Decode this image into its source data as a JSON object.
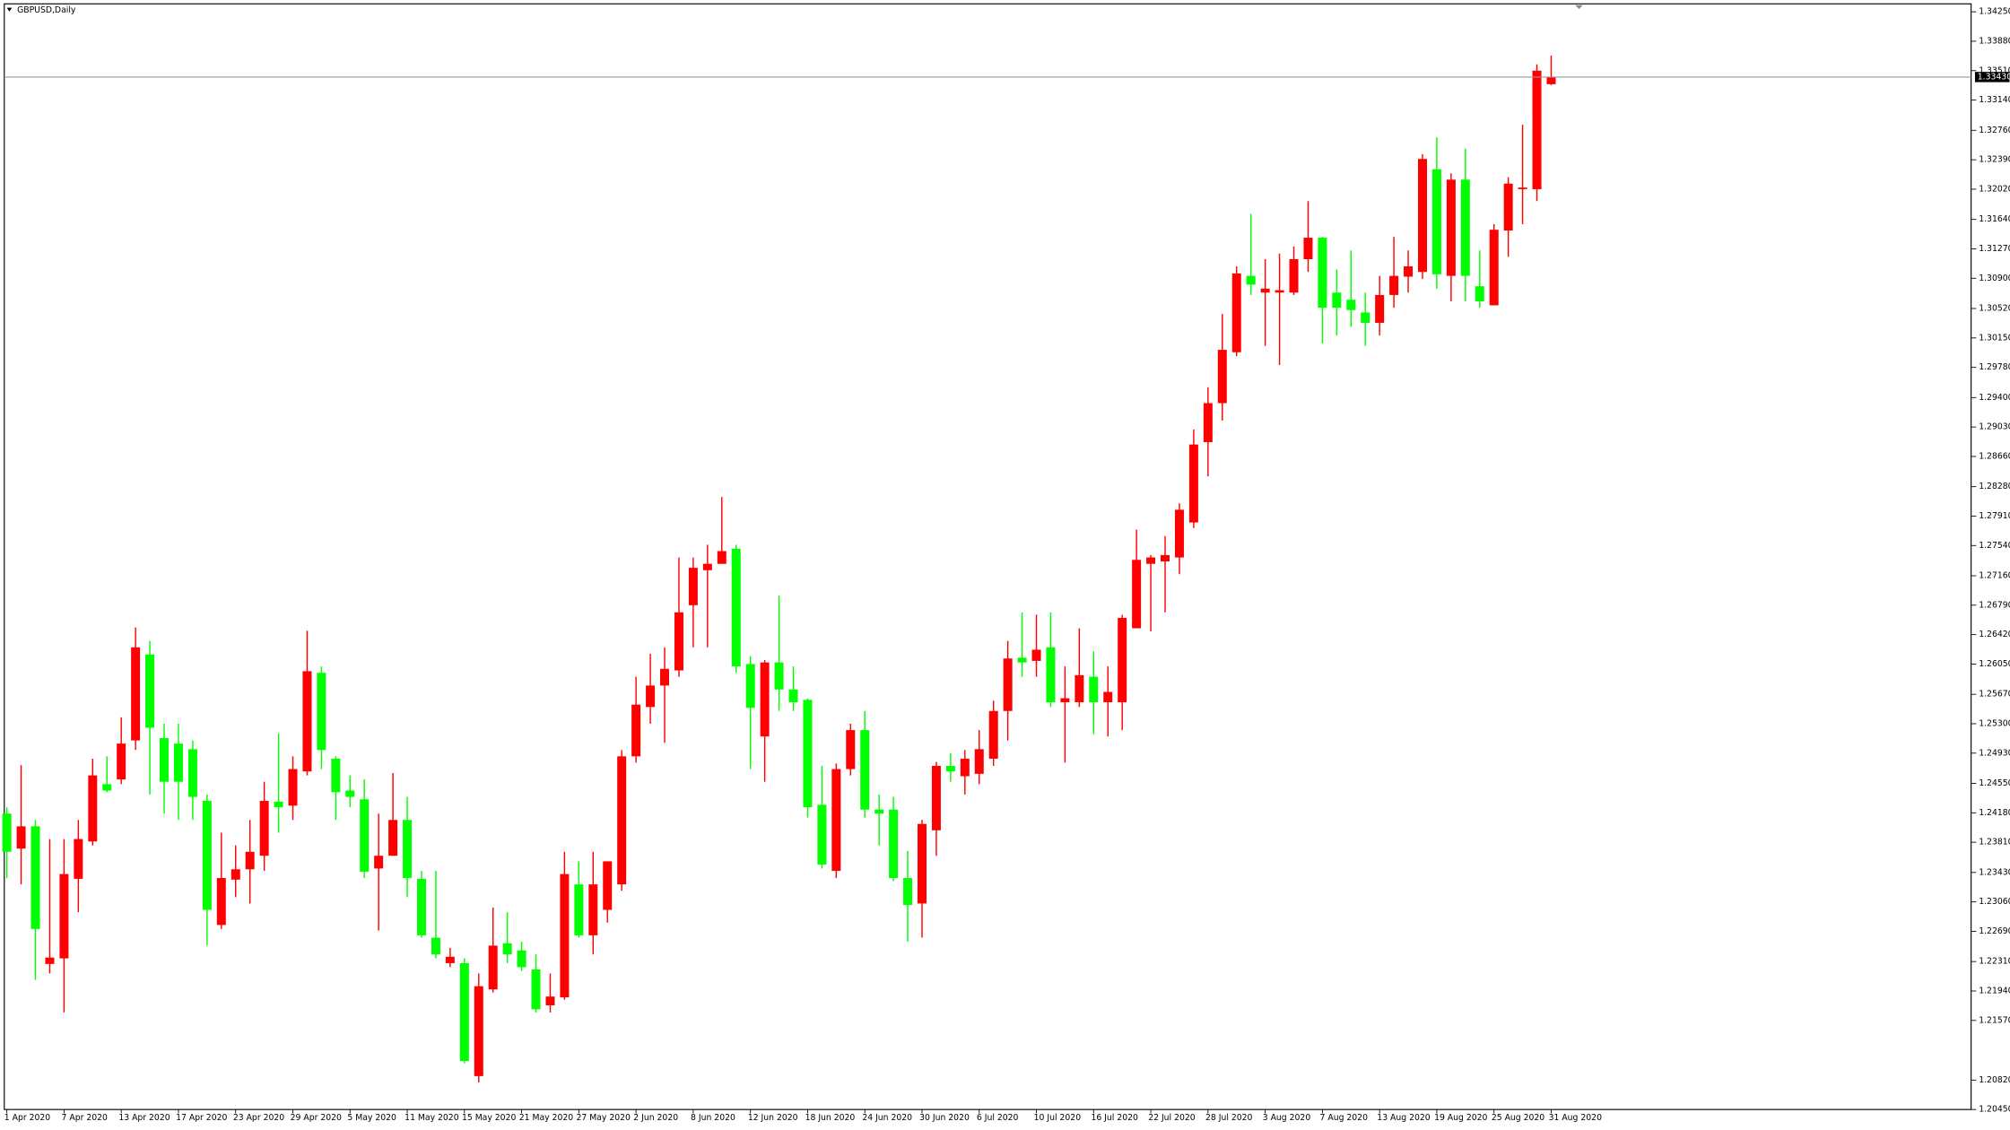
{
  "chart_data": {
    "type": "candlestick",
    "title": "GBPUSD,Daily",
    "up_color": "#ff0000",
    "down_color": "#00ff00",
    "categories": [
      "1 Apr 2020",
      null,
      null,
      null,
      "7 Apr 2020",
      null,
      null,
      null,
      "13 Apr 2020",
      null,
      null,
      null,
      "17 Apr 2020",
      null,
      null,
      null,
      "23 Apr 2020",
      null,
      null,
      null,
      "29 Apr 2020",
      null,
      null,
      null,
      "5 May 2020",
      null,
      null,
      null,
      "11 May 2020",
      null,
      null,
      null,
      "15 May 2020",
      null,
      null,
      null,
      "21 May 2020",
      null,
      null,
      null,
      "27 May 2020",
      null,
      null,
      null,
      "2 Jun 2020",
      null,
      null,
      null,
      "8 Jun 2020",
      null,
      null,
      null,
      "12 Jun 2020",
      null,
      null,
      null,
      "18 Jun 2020",
      null,
      null,
      null,
      "24 Jun 2020",
      null,
      null,
      null,
      "30 Jun 2020",
      null,
      null,
      null,
      "6 Jul 2020",
      null,
      null,
      null,
      "10 Jul 2020",
      null,
      null,
      null,
      "16 Jul 2020",
      null,
      null,
      null,
      "22 Jul 2020",
      null,
      null,
      null,
      "28 Jul 2020",
      null,
      null,
      null,
      "3 Aug 2020",
      null,
      null,
      null,
      "7 Aug 2020",
      null,
      null,
      null,
      "13 Aug 2020",
      null,
      null,
      null,
      "19 Aug 2020",
      null,
      null,
      null,
      "25 Aug 2020",
      null,
      null,
      null,
      "31 Aug 2020"
    ],
    "open": [
      1.2417,
      1.2373,
      1.2401,
      1.2228,
      1.2235,
      1.2335,
      1.2382,
      1.2454,
      1.246,
      1.2509,
      1.2617,
      1.2512,
      1.2505,
      1.2498,
      1.2433,
      1.2277,
      1.2334,
      1.2347,
      1.2364,
      1.2432,
      1.2427,
      1.247,
      1.2594,
      1.2486,
      1.2446,
      1.2435,
      1.2348,
      1.2364,
      1.2409,
      1.2335,
      1.2261,
      1.2229,
      1.2229,
      1.2087,
      1.2196,
      1.2254,
      1.2245,
      1.2221,
      1.2176,
      1.2186,
      1.2328,
      1.2264,
      1.2296,
      1.2328,
      1.2489,
      1.2551,
      1.2578,
      1.2597,
      1.2679,
      1.2723,
      1.2731,
      1.275,
      1.2605,
      1.2514,
      1.2607,
      1.2573,
      1.256,
      1.2428,
      1.2345,
      1.2473,
      1.2522,
      1.2422,
      1.2422,
      1.2336,
      1.2304,
      1.2396,
      1.2477,
      1.2464,
      1.2467,
      1.2486,
      1.2546,
      1.2613,
      1.2609,
      1.2626,
      1.2557,
      1.2557,
      1.2589,
      1.2557,
      1.2557,
      1.265,
      1.2731,
      1.2734,
      1.2739,
      1.2783,
      1.2884,
      1.2933,
      1.2997,
      1.3093,
      1.3072,
      1.3072,
      1.3072,
      1.3114,
      1.3141,
      1.3072,
      1.3063,
      1.3047,
      1.3034,
      1.3069,
      1.3092,
      1.3098,
      1.3227,
      1.3093,
      1.3214,
      1.308,
      1.3056,
      1.315,
      1.3202,
      1.3202,
      1.3334
    ],
    "high": [
      1.2425,
      1.2478,
      1.2409,
      1.2385,
      1.2385,
      1.2409,
      1.2486,
      1.2489,
      1.2538,
      1.2651,
      1.2634,
      1.253,
      1.253,
      1.2509,
      1.2441,
      1.2393,
      1.2377,
      1.2409,
      1.2457,
      1.2518,
      1.2489,
      1.2647,
      1.2602,
      1.2489,
      1.2465,
      1.246,
      1.2417,
      1.2468,
      1.2438,
      1.2345,
      1.2345,
      1.2248,
      1.2235,
      1.2216,
      1.2299,
      1.2293,
      1.2256,
      1.224,
      1.2216,
      1.2369,
      1.2357,
      1.2369,
      1.2357,
      1.2497,
      1.2589,
      1.2618,
      1.2626,
      1.2739,
      1.2739,
      1.2755,
      1.2815,
      1.2755,
      1.2615,
      1.261,
      1.2691,
      1.2602,
      1.2562,
      1.2477,
      1.248,
      1.253,
      1.2546,
      1.2441,
      1.2438,
      1.237,
      1.2409,
      1.2482,
      1.2493,
      1.2497,
      1.2522,
      1.2559,
      1.2634,
      1.267,
      1.2667,
      1.267,
      1.2602,
      1.265,
      1.2621,
      1.2602,
      1.2667,
      1.2774,
      1.2742,
      1.2766,
      1.2807,
      1.29,
      1.2953,
      1.3045,
      1.3105,
      1.3171,
      1.3114,
      1.3121,
      1.313,
      1.3187,
      1.3142,
      1.3101,
      1.3125,
      1.3072,
      1.3093,
      1.3142,
      1.3125,
      1.3246,
      1.3267,
      1.3222,
      1.3253,
      1.3125,
      1.3158,
      1.3217,
      1.3283,
      1.3359,
      1.337
    ],
    "low": [
      1.2336,
      1.2328,
      1.2208,
      1.2216,
      1.2167,
      1.2293,
      1.2377,
      1.2444,
      1.2454,
      1.2497,
      1.2441,
      1.2417,
      1.2409,
      1.2409,
      1.2251,
      1.2272,
      1.2312,
      1.2304,
      1.2345,
      1.2393,
      1.2409,
      1.2465,
      1.2473,
      1.2409,
      1.2425,
      1.2336,
      1.227,
      1.2364,
      1.2312,
      1.2261,
      1.2235,
      1.2224,
      1.2103,
      1.2079,
      1.2192,
      1.2229,
      1.2219,
      1.2167,
      1.2167,
      1.2183,
      1.2261,
      1.224,
      1.228,
      1.232,
      1.2481,
      1.253,
      1.2506,
      1.2589,
      1.2626,
      1.2626,
      1.2731,
      1.2594,
      1.2473,
      1.2457,
      1.2546,
      1.2546,
      1.2412,
      1.2348,
      1.2336,
      1.2465,
      1.2412,
      1.2377,
      1.2332,
      1.2256,
      1.2261,
      1.2364,
      1.2457,
      1.2441,
      1.2454,
      1.2477,
      1.2509,
      1.2589,
      1.2589,
      1.2551,
      1.2481,
      1.2551,
      1.2517,
      1.2514,
      1.2522,
      1.265,
      1.2646,
      1.267,
      1.2718,
      1.2776,
      1.2841,
      1.2911,
      1.2992,
      1.3069,
      1.3005,
      1.2981,
      1.3069,
      1.3098,
      1.3008,
      1.3018,
      1.3029,
      1.3005,
      1.3018,
      1.3053,
      1.3072,
      1.3089,
      1.3077,
      1.3061,
      1.3061,
      1.3053,
      1.3056,
      1.3117,
      1.3158,
      1.3187,
      1.3333
    ],
    "close": [
      1.2369,
      1.2401,
      1.2272,
      1.2236,
      1.2341,
      1.2385,
      1.2465,
      1.2446,
      1.2505,
      1.2626,
      1.2525,
      1.2457,
      1.2457,
      1.2438,
      1.2296,
      1.2336,
      1.2347,
      1.2369,
      1.2433,
      1.2425,
      1.2473,
      1.2596,
      1.2497,
      1.2444,
      1.2438,
      1.2344,
      1.2364,
      1.2409,
      1.2336,
      1.2264,
      1.224,
      1.2237,
      1.2106,
      1.22,
      1.2251,
      1.224,
      1.2224,
      1.2171,
      1.2187,
      1.2341,
      1.2264,
      1.2328,
      1.2357,
      1.2489,
      1.2554,
      1.2578,
      1.2599,
      1.267,
      1.2726,
      1.2731,
      1.2747,
      1.2602,
      1.255,
      1.2607,
      1.2573,
      1.2557,
      1.2425,
      1.2353,
      1.2473,
      1.2522,
      1.2422,
      1.2417,
      1.2336,
      1.2302,
      1.2404,
      1.2477,
      1.247,
      1.2486,
      1.2498,
      1.2546,
      1.2612,
      1.2607,
      1.2623,
      1.2557,
      1.2562,
      1.2591,
      1.2557,
      1.257,
      1.2663,
      1.2736,
      1.2739,
      1.2742,
      1.2799,
      1.2881,
      1.2933,
      1.3,
      1.3096,
      1.3082,
      1.3077,
      1.3075,
      1.3114,
      1.3141,
      1.3053,
      1.3053,
      1.305,
      1.3034,
      1.3069,
      1.3093,
      1.3105,
      1.324,
      1.3095,
      1.3214,
      1.3093,
      1.3061,
      1.3151,
      1.3209,
      1.3204,
      1.3351,
      1.3343
    ],
    "ylim": [
      1.2045,
      1.3435
    ],
    "yticks": [
      {
        "value": 1.3425,
        "label": "1.34250"
      },
      {
        "value": 1.3388,
        "label": "1.33880"
      },
      {
        "value": 1.3351,
        "label": "1.33510"
      },
      {
        "value": 1.3314,
        "label": "1.33140"
      },
      {
        "value": 1.3276,
        "label": "1.32760"
      },
      {
        "value": 1.3239,
        "label": "1.32390"
      },
      {
        "value": 1.3202,
        "label": "1.32020"
      },
      {
        "value": 1.3164,
        "label": "1.31640"
      },
      {
        "value": 1.3127,
        "label": "1.31270"
      },
      {
        "value": 1.309,
        "label": "1.30900"
      },
      {
        "value": 1.3052,
        "label": "1.30520"
      },
      {
        "value": 1.3015,
        "label": "1.30150"
      },
      {
        "value": 1.2978,
        "label": "1.29780"
      },
      {
        "value": 1.294,
        "label": "1.29400"
      },
      {
        "value": 1.2903,
        "label": "1.29030"
      },
      {
        "value": 1.2866,
        "label": "1.28660"
      },
      {
        "value": 1.2828,
        "label": "1.28280"
      },
      {
        "value": 1.2791,
        "label": "1.27910"
      },
      {
        "value": 1.2754,
        "label": "1.27540"
      },
      {
        "value": 1.2716,
        "label": "1.27160"
      },
      {
        "value": 1.2679,
        "label": "1.26790"
      },
      {
        "value": 1.2642,
        "label": "1.26420"
      },
      {
        "value": 1.2605,
        "label": "1.26050"
      },
      {
        "value": 1.2567,
        "label": "1.25670"
      },
      {
        "value": 1.253,
        "label": "1.25300"
      },
      {
        "value": 1.2493,
        "label": "1.24930"
      },
      {
        "value": 1.2455,
        "label": "1.24550"
      },
      {
        "value": 1.2418,
        "label": "1.24180"
      },
      {
        "value": 1.2381,
        "label": "1.23810"
      },
      {
        "value": 1.2343,
        "label": "1.23430"
      },
      {
        "value": 1.2306,
        "label": "1.23060"
      },
      {
        "value": 1.2269,
        "label": "1.22690"
      },
      {
        "value": 1.2231,
        "label": "1.22310"
      },
      {
        "value": 1.2194,
        "label": "1.21940"
      },
      {
        "value": 1.2157,
        "label": "1.21570"
      },
      {
        "value": 1.2082,
        "label": "1.20820"
      },
      {
        "value": 1.2045,
        "label": "1.20450"
      }
    ],
    "current_price": {
      "value": 1.3343,
      "label": "1.33430"
    },
    "grid": false
  }
}
